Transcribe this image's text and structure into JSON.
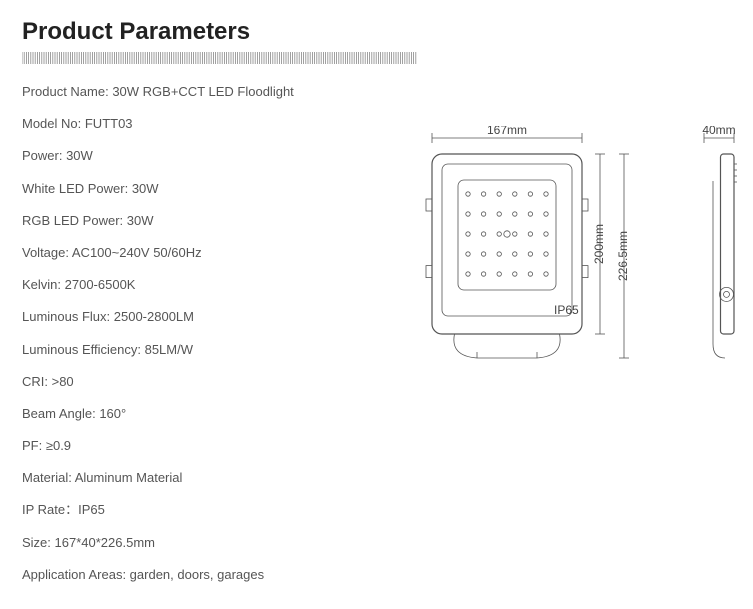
{
  "title": "Product Parameters",
  "specs": [
    {
      "label": "Product Name",
      "value": "30W RGB+CCT LED Floodlight"
    },
    {
      "label": "Model No",
      "value": "FUTT03"
    },
    {
      "label": "Power",
      "value": "30W"
    },
    {
      "label": "White LED Power",
      "value": "30W"
    },
    {
      "label": "RGB LED Power",
      "value": "30W"
    },
    {
      "label": "Voltage",
      "value": "AC100~240V    50/60Hz"
    },
    {
      "label": "Kelvin",
      "value": "2700-6500K"
    },
    {
      "label": "Luminous Flux",
      "value": "2500-2800LM"
    },
    {
      "label": "Luminous Efficiency",
      "value": "85LM/W"
    },
    {
      "label": "CRI",
      "value": ">80"
    },
    {
      "label": "Beam Angle",
      "value": "160°"
    },
    {
      "label": "PF",
      "value": "≥0.9"
    },
    {
      "label": "Material",
      "value": "Aluminum Material"
    },
    {
      "label": "IP Rate",
      "value": "IP65",
      "separator": "："
    },
    {
      "label": "Size",
      "value": "167*40*226.5mm"
    },
    {
      "label": "Application Areas",
      "value": "garden, doors, garages"
    }
  ],
  "diagram": {
    "stroke": "#555555",
    "front": {
      "width_label": "167mm",
      "height_label": "200mm",
      "overall_height_label": "226.5mm",
      "body_w": 150,
      "body_h": 180,
      "led_rows": 5,
      "led_cols": 6,
      "ip_text": "IP65"
    },
    "side": {
      "width_label": "40mm",
      "body_w": 30,
      "body_h": 180
    }
  },
  "colors": {
    "text": "#555555",
    "title": "#222222",
    "line": "#555555"
  }
}
